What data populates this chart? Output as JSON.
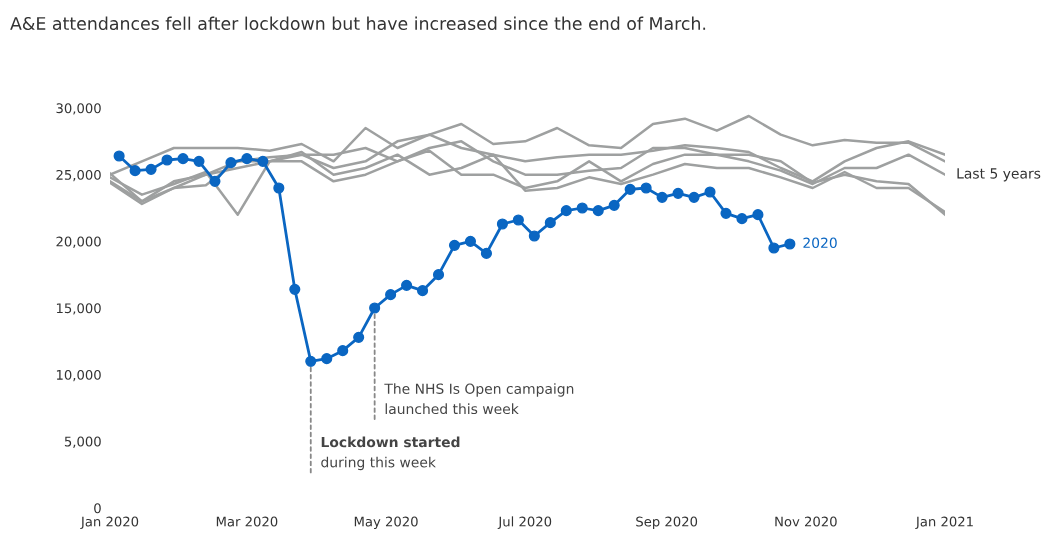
{
  "chart_data": {
    "type": "line",
    "title": "A&E attendances fell after lockdown but have increased since the end of March.",
    "ylim": [
      0,
      30000
    ],
    "yticks": [
      0,
      {
        "value": 5000,
        "label": "5,000"
      },
      {
        "value": 10000,
        "label": "10,000"
      },
      {
        "value": 15000,
        "label": "15,000"
      },
      {
        "value": 20000,
        "label": "20,000"
      },
      {
        "value": 25000,
        "label": "25,000"
      },
      {
        "value": 30000,
        "label": "30,000"
      }
    ],
    "xticks": [
      {
        "value": "2020-01-01",
        "label": "Jan 2020"
      },
      {
        "value": "2020-03-01",
        "label": "Mar 2020"
      },
      {
        "value": "2020-05-01",
        "label": "May 2020"
      },
      {
        "value": "2020-07-01",
        "label": "Jul 2020"
      },
      {
        "value": "2020-09-01",
        "label": "Sep 2020"
      },
      {
        "value": "2020-11-01",
        "label": "Nov 2020"
      },
      {
        "value": "2021-01-01",
        "label": "Jan 2021"
      }
    ],
    "xlim": [
      "2020-01-01",
      "2021-01-01"
    ],
    "grid": false,
    "line_style": "solid",
    "x": [
      "2020-01-01",
      "2020-01-15",
      "2020-01-29",
      "2020-02-12",
      "2020-02-26",
      "2020-03-11",
      "2020-03-25",
      "2020-04-08",
      "2020-04-22",
      "2020-05-06",
      "2020-05-20",
      "2020-06-03",
      "2020-06-17",
      "2020-07-01",
      "2020-07-15",
      "2020-07-29",
      "2020-08-12",
      "2020-08-26",
      "2020-09-09",
      "2020-09-23",
      "2020-10-07",
      "2020-10-21",
      "2020-11-04",
      "2020-11-18",
      "2020-12-02",
      "2020-12-16",
      "2021-01-01"
    ],
    "series": [
      {
        "color": "#9ea0a0",
        "marker": "none",
        "values": [
          25000,
          26000,
          27000,
          27000,
          27000,
          26800,
          27300,
          26000,
          28500,
          27000,
          28000,
          28800,
          27300,
          27500,
          28500,
          27200,
          27000,
          28800,
          29200,
          28300,
          29400,
          28000,
          27200,
          27600,
          27400,
          27400,
          26000
        ]
      },
      {
        "color": "#9ea0a0",
        "marker": "none",
        "values": [
          25100,
          23000,
          24000,
          25000,
          25500,
          26000,
          26500,
          25500,
          26000,
          27500,
          28000,
          27000,
          26500,
          26000,
          26300,
          26500,
          26500,
          26800,
          27200,
          27000,
          26700,
          25500,
          24500,
          26000,
          27000,
          27500,
          26500
        ]
      },
      {
        "color": "#9ea0a0",
        "marker": "none",
        "values": [
          24500,
          23000,
          24500,
          25000,
          26000,
          26300,
          26500,
          26500,
          27000,
          26000,
          27000,
          27500,
          26000,
          25000,
          25000,
          25300,
          25500,
          27000,
          27000,
          26500,
          26000,
          25300,
          24300,
          25500,
          25500,
          26500,
          25000
        ]
      },
      {
        "color": "#9ea0a0",
        "marker": "none",
        "values": [
          24400,
          22800,
          24000,
          24200,
          26000,
          26000,
          26000,
          24500,
          25000,
          26000,
          26800,
          25000,
          25000,
          24000,
          24500,
          26000,
          24500,
          25800,
          26500,
          26500,
          26500,
          26000,
          24400,
          25000,
          24500,
          24300,
          22000
        ]
      },
      {
        "color": "#9ea0a0",
        "marker": "none",
        "values": [
          24800,
          23500,
          24300,
          25200,
          22000,
          26000,
          26700,
          25000,
          25500,
          26500,
          25000,
          25500,
          26500,
          23800,
          24000,
          24800,
          24300,
          25000,
          25800,
          25500,
          25500,
          24800,
          24000,
          25200,
          24000,
          24000,
          22200
        ]
      },
      {
        "name": "2020",
        "color": "#0a66c2",
        "marker": "circle",
        "x": [
          "2020-01-05",
          "2020-01-12",
          "2020-01-19",
          "2020-01-26",
          "2020-02-02",
          "2020-02-09",
          "2020-02-16",
          "2020-02-23",
          "2020-03-01",
          "2020-03-08",
          "2020-03-15",
          "2020-03-22",
          "2020-03-29",
          "2020-04-05",
          "2020-04-12",
          "2020-04-19",
          "2020-04-26",
          "2020-05-03",
          "2020-05-10",
          "2020-05-17",
          "2020-05-24",
          "2020-05-31",
          "2020-06-07",
          "2020-06-14",
          "2020-06-21",
          "2020-06-28",
          "2020-07-05",
          "2020-07-12",
          "2020-07-19",
          "2020-07-26",
          "2020-08-02",
          "2020-08-09",
          "2020-08-16",
          "2020-08-23",
          "2020-08-30",
          "2020-09-06",
          "2020-09-13",
          "2020-09-20",
          "2020-09-27",
          "2020-10-04",
          "2020-10-11",
          "2020-10-18",
          "2020-10-25"
        ],
        "values": [
          26400,
          25300,
          25400,
          26100,
          26200,
          26000,
          24500,
          25900,
          26200,
          26000,
          24000,
          16400,
          11000,
          11200,
          11800,
          12800,
          15000,
          16000,
          16700,
          16300,
          17500,
          19700,
          20000,
          19100,
          21300,
          21600,
          20400,
          21400,
          22300,
          22500,
          22300,
          22700,
          23900,
          24000,
          23300,
          23600,
          23300,
          23700,
          22100,
          21700,
          22000,
          19500,
          19800
        ]
      }
    ],
    "annotations": [
      {
        "text": "Lockdown started\nduring this week",
        "x": "2020-03-29",
        "y": 11000
      },
      {
        "text": "The NHS Is Open campaign\nlaunched this week",
        "x": "2020-04-26",
        "y": 15000
      },
      {
        "text": "Last 5 years",
        "x": "2021-01-01",
        "y": 25000
      }
    ]
  }
}
